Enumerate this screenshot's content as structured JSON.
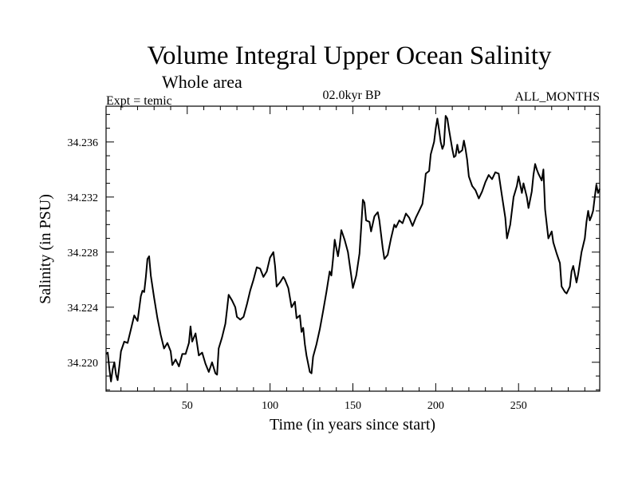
{
  "chart_data": {
    "type": "line",
    "title": "Volume Integral Upper Ocean Salinity",
    "subtitle": "Whole area",
    "experiment_label": "Expt = temic",
    "period_label": "02.0kyr BP",
    "months_label": "ALL_MONTHS",
    "xlabel": "Time (in years since start)",
    "ylabel": "Salinity (in PSU)",
    "xlim": [
      1,
      299
    ],
    "ylim": [
      34.2179,
      34.2386
    ],
    "x_ticks": [
      50,
      100,
      150,
      200,
      250
    ],
    "y_ticks": [
      34.22,
      34.224,
      34.228,
      34.232,
      34.236
    ],
    "x_tick_labels": [
      "50",
      "100",
      "150",
      "200",
      "250"
    ],
    "y_tick_labels": [
      "34.220",
      "34.224",
      "34.228",
      "34.232",
      "34.236"
    ],
    "series": [
      {
        "name": "salinity",
        "color": "#000000",
        "points": [
          [
            1,
            34.2206
          ],
          [
            2,
            34.2207
          ],
          [
            3,
            34.2195
          ],
          [
            4,
            34.2186
          ],
          [
            5,
            34.2195
          ],
          [
            6,
            34.22
          ],
          [
            7,
            34.2191
          ],
          [
            8,
            34.2187
          ],
          [
            9,
            34.2197
          ],
          [
            10,
            34.2208
          ],
          [
            12,
            34.2215
          ],
          [
            14,
            34.2214
          ],
          [
            16,
            34.2224
          ],
          [
            18,
            34.2234
          ],
          [
            20,
            34.223
          ],
          [
            22,
            34.2248
          ],
          [
            23,
            34.2252
          ],
          [
            24,
            34.2251
          ],
          [
            25,
            34.2262
          ],
          [
            26,
            34.2275
          ],
          [
            27,
            34.2277
          ],
          [
            28,
            34.2263
          ],
          [
            30,
            34.2247
          ],
          [
            32,
            34.2232
          ],
          [
            34,
            34.222
          ],
          [
            36,
            34.221
          ],
          [
            38,
            34.2214
          ],
          [
            40,
            34.2208
          ],
          [
            41,
            34.2198
          ],
          [
            43,
            34.2202
          ],
          [
            45,
            34.2197
          ],
          [
            47,
            34.2206
          ],
          [
            49,
            34.2206
          ],
          [
            51,
            34.2214
          ],
          [
            52,
            34.2226
          ],
          [
            53,
            34.2215
          ],
          [
            55,
            34.2221
          ],
          [
            57,
            34.2205
          ],
          [
            59,
            34.2207
          ],
          [
            61,
            34.2199
          ],
          [
            63,
            34.2193
          ],
          [
            65,
            34.22
          ],
          [
            67,
            34.2192
          ],
          [
            68,
            34.2191
          ],
          [
            69,
            34.221
          ],
          [
            71,
            34.2218
          ],
          [
            73,
            34.2228
          ],
          [
            74,
            34.2238
          ],
          [
            75,
            34.2249
          ],
          [
            77,
            34.2245
          ],
          [
            79,
            34.224
          ],
          [
            80,
            34.2233
          ],
          [
            82,
            34.2231
          ],
          [
            84,
            34.2233
          ],
          [
            86,
            34.2242
          ],
          [
            88,
            34.2252
          ],
          [
            90,
            34.226
          ],
          [
            92,
            34.2269
          ],
          [
            94,
            34.2268
          ],
          [
            96,
            34.2262
          ],
          [
            98,
            34.2266
          ],
          [
            100,
            34.2276
          ],
          [
            102,
            34.228
          ],
          [
            103,
            34.227
          ],
          [
            104,
            34.2255
          ],
          [
            106,
            34.2258
          ],
          [
            108,
            34.2262
          ],
          [
            109,
            34.226
          ],
          [
            111,
            34.2254
          ],
          [
            113,
            34.224
          ],
          [
            115,
            34.2244
          ],
          [
            116,
            34.2232
          ],
          [
            118,
            34.2234
          ],
          [
            119,
            34.2222
          ],
          [
            120,
            34.2225
          ],
          [
            121,
            34.2213
          ],
          [
            122,
            34.2205
          ],
          [
            124,
            34.2193
          ],
          [
            125,
            34.2192
          ],
          [
            126,
            34.2204
          ],
          [
            128,
            34.2213
          ],
          [
            130,
            34.2224
          ],
          [
            132,
            34.2237
          ],
          [
            134,
            34.2251
          ],
          [
            136,
            34.2266
          ],
          [
            137,
            34.2263
          ],
          [
            138,
            34.2275
          ],
          [
            139,
            34.2289
          ],
          [
            140,
            34.2283
          ],
          [
            141,
            34.2277
          ],
          [
            142,
            34.2285
          ],
          [
            143,
            34.2296
          ],
          [
            145,
            34.2289
          ],
          [
            147,
            34.228
          ],
          [
            149,
            34.2263
          ],
          [
            150,
            34.2254
          ],
          [
            152,
            34.2263
          ],
          [
            154,
            34.2279
          ],
          [
            155,
            34.2298
          ],
          [
            156,
            34.2318
          ],
          [
            157,
            34.2316
          ],
          [
            158,
            34.2303
          ],
          [
            160,
            34.2302
          ],
          [
            161,
            34.2295
          ],
          [
            163,
            34.2306
          ],
          [
            165,
            34.2309
          ],
          [
            166,
            34.2303
          ],
          [
            168,
            34.2283
          ],
          [
            169,
            34.2275
          ],
          [
            171,
            34.2278
          ],
          [
            173,
            34.229
          ],
          [
            175,
            34.23
          ],
          [
            176,
            34.2298
          ],
          [
            178,
            34.2303
          ],
          [
            180,
            34.2301
          ],
          [
            182,
            34.2308
          ],
          [
            184,
            34.2305
          ],
          [
            186,
            34.2299
          ],
          [
            188,
            34.2305
          ],
          [
            190,
            34.231
          ],
          [
            192,
            34.2315
          ],
          [
            193,
            34.2325
          ],
          [
            194,
            34.2337
          ],
          [
            196,
            34.2339
          ],
          [
            197,
            34.2351
          ],
          [
            199,
            34.236
          ],
          [
            200,
            34.237
          ],
          [
            201,
            34.2377
          ],
          [
            202,
            34.2369
          ],
          [
            203,
            34.236
          ],
          [
            204,
            34.2355
          ],
          [
            205,
            34.2358
          ],
          [
            206,
            34.2379
          ],
          [
            207,
            34.2377
          ],
          [
            208,
            34.2369
          ],
          [
            210,
            34.2355
          ],
          [
            211,
            34.2349
          ],
          [
            212,
            34.235
          ],
          [
            213,
            34.2358
          ],
          [
            214,
            34.2352
          ],
          [
            216,
            34.2354
          ],
          [
            217,
            34.2361
          ],
          [
            218,
            34.2355
          ],
          [
            219,
            34.2347
          ],
          [
            220,
            34.2335
          ],
          [
            222,
            34.2328
          ],
          [
            224,
            34.2325
          ],
          [
            226,
            34.2319
          ],
          [
            228,
            34.2324
          ],
          [
            230,
            34.2331
          ],
          [
            232,
            34.2336
          ],
          [
            234,
            34.2333
          ],
          [
            236,
            34.2338
          ],
          [
            238,
            34.2337
          ],
          [
            240,
            34.2321
          ],
          [
            242,
            34.2305
          ],
          [
            243,
            34.229
          ],
          [
            245,
            34.23
          ],
          [
            247,
            34.232
          ],
          [
            249,
            34.2328
          ],
          [
            250,
            34.2335
          ],
          [
            252,
            34.2323
          ],
          [
            253,
            34.233
          ],
          [
            255,
            34.232
          ],
          [
            256,
            34.2312
          ],
          [
            258,
            34.2324
          ],
          [
            259,
            34.2336
          ],
          [
            260,
            34.2344
          ],
          [
            261,
            34.234
          ],
          [
            262,
            34.2337
          ],
          [
            264,
            34.2332
          ],
          [
            265,
            34.234
          ],
          [
            266,
            34.2311
          ],
          [
            268,
            34.229
          ],
          [
            270,
            34.2295
          ],
          [
            271,
            34.2287
          ],
          [
            273,
            34.2279
          ],
          [
            275,
            34.2272
          ],
          [
            276,
            34.2255
          ],
          [
            278,
            34.2251
          ],
          [
            279,
            34.225
          ],
          [
            281,
            34.2255
          ],
          [
            282,
            34.2266
          ],
          [
            283,
            34.227
          ],
          [
            285,
            34.2258
          ],
          [
            286,
            34.2264
          ],
          [
            288,
            34.228
          ],
          [
            290,
            34.229
          ],
          [
            291,
            34.2302
          ],
          [
            292,
            34.231
          ],
          [
            293,
            34.2303
          ],
          [
            294,
            34.2306
          ],
          [
            295,
            34.231
          ],
          [
            296,
            34.232
          ],
          [
            297,
            34.2329
          ],
          [
            298,
            34.2323
          ],
          [
            299,
            34.2326
          ]
        ]
      }
    ]
  }
}
